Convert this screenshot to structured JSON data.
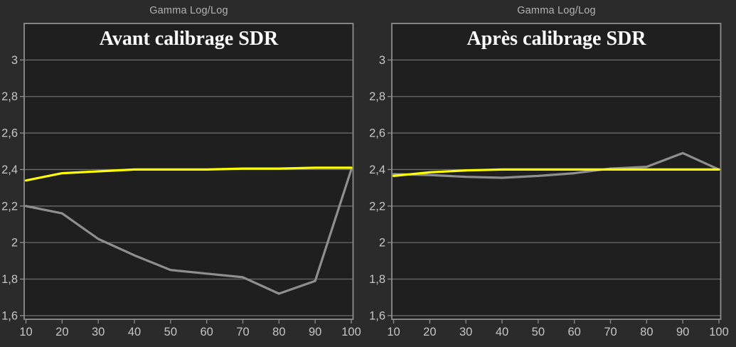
{
  "window": {
    "background": "#2b2b2b"
  },
  "theme": {
    "page_bg": "#2b2b2b",
    "plot_bg": "#1f1f1f",
    "grid_color": "#6b6b6b",
    "border_color": "#8e8e8e",
    "tick_text_color": "#c6c6c6",
    "title_text_color": "#b3b3b3",
    "subtitle_text_color": "#ffffff",
    "target_color": "#ffff00",
    "measured_color": "#8f8f8f"
  },
  "chart_data": [
    {
      "type": "line",
      "title": "Gamma Log/Log",
      "subtitle": "Avant calibrage SDR",
      "x": [
        10,
        20,
        30,
        40,
        50,
        60,
        70,
        80,
        90,
        100
      ],
      "x_tick_labels": [
        "10",
        "20",
        "30",
        "40",
        "50",
        "60",
        "70",
        "80",
        "90",
        "100"
      ],
      "y_tick_values": [
        3,
        2.8,
        2.6,
        2.4,
        2.2,
        2,
        1.8,
        1.6
      ],
      "y_tick_labels": [
        "3",
        "2,8",
        "2,6",
        "2,4",
        "2,2",
        "2",
        "1,8",
        "1,6"
      ],
      "ylim": [
        1.58,
        3.2
      ],
      "xlabel": "",
      "ylabel": "",
      "grid": true,
      "legend": "none",
      "series": [
        {
          "name": "measured-gamma",
          "color": "#8f8f8f",
          "values": [
            2.2,
            2.16,
            2.02,
            1.93,
            1.85,
            1.83,
            1.81,
            1.72,
            1.79,
            2.4
          ]
        },
        {
          "name": "target-gamma",
          "color": "#ffff00",
          "values": [
            2.34,
            2.38,
            2.39,
            2.4,
            2.4,
            2.4,
            2.405,
            2.405,
            2.41,
            2.41
          ]
        }
      ]
    },
    {
      "type": "line",
      "title": "Gamma Log/Log",
      "subtitle": "Après calibrage SDR",
      "x": [
        10,
        20,
        30,
        40,
        50,
        60,
        70,
        80,
        90,
        100
      ],
      "x_tick_labels": [
        "10",
        "20",
        "30",
        "40",
        "50",
        "60",
        "70",
        "80",
        "90",
        "100"
      ],
      "y_tick_values": [
        3,
        2.8,
        2.6,
        2.4,
        2.2,
        2,
        1.8,
        1.6
      ],
      "y_tick_labels": [
        "3",
        "2,8",
        "2,6",
        "2,4",
        "2,2",
        "2",
        "1,8",
        "1,6"
      ],
      "ylim": [
        1.58,
        3.2
      ],
      "xlabel": "",
      "ylabel": "",
      "grid": true,
      "legend": "none",
      "series": [
        {
          "name": "measured-gamma",
          "color": "#8f8f8f",
          "values": [
            2.375,
            2.37,
            2.36,
            2.355,
            2.365,
            2.38,
            2.405,
            2.415,
            2.49,
            2.4
          ]
        },
        {
          "name": "target-gamma",
          "color": "#ffff00",
          "values": [
            2.365,
            2.385,
            2.395,
            2.4,
            2.4,
            2.4,
            2.4,
            2.4,
            2.4,
            2.4
          ]
        }
      ]
    }
  ]
}
